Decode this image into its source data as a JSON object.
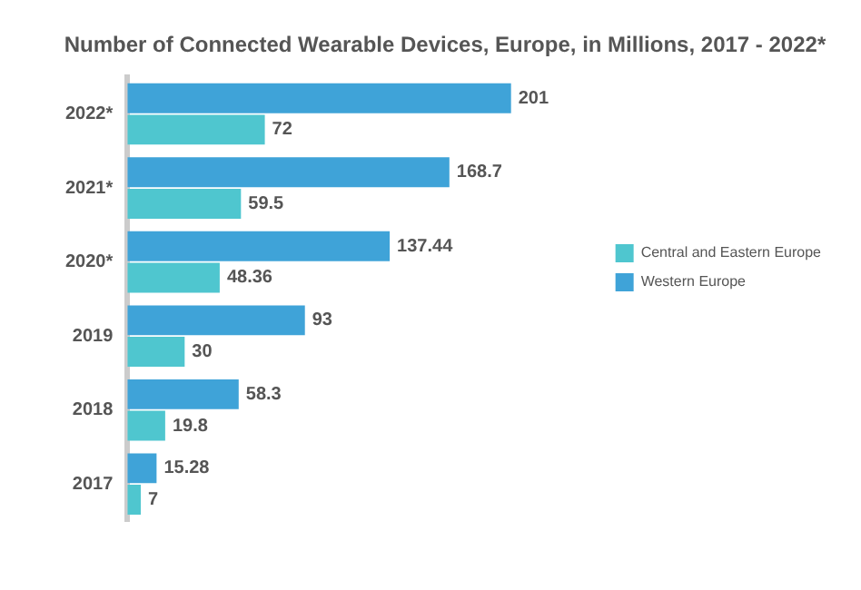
{
  "chart_data": {
    "type": "bar",
    "orientation": "horizontal",
    "title": "Number of Connected Wearable Devices, Europe, in Millions, 2017 - 2022*",
    "categories": [
      "2022*",
      "2021*",
      "2020*",
      "2019",
      "2018",
      "2017"
    ],
    "series": [
      {
        "name": "Western Europe",
        "color": "#3fa3d8",
        "values": [
          201,
          168.7,
          137.44,
          93,
          58.3,
          15.28
        ]
      },
      {
        "name": "Central and Eastern Europe",
        "color": "#4fc6cf",
        "values": [
          72,
          59.5,
          48.36,
          30,
          19.8,
          7
        ]
      }
    ],
    "data_labels": true,
    "legend": "right",
    "grid": false
  }
}
